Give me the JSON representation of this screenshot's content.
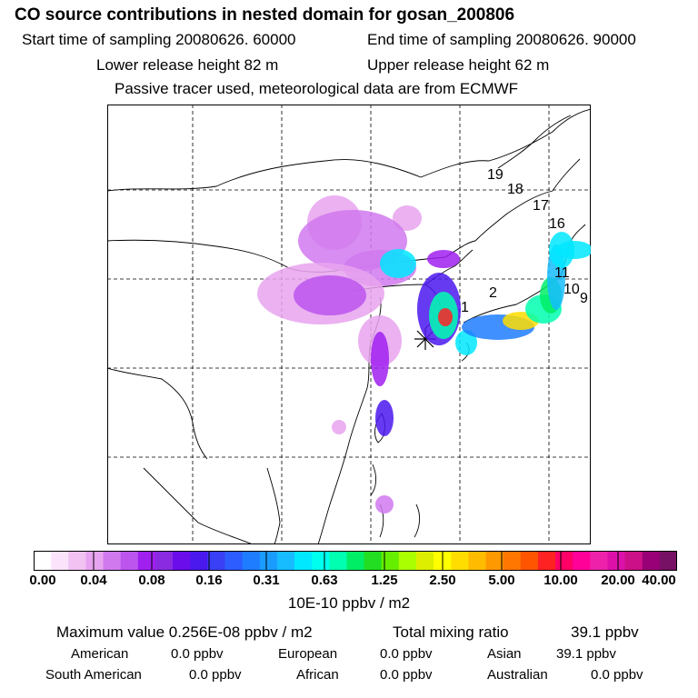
{
  "header": {
    "title": "CO  source contributions in nested domain for gosan_200806",
    "start": "Start time of sampling 20080626. 60000",
    "end": "End time of sampling 20080626. 90000",
    "lower": "Lower release height   82 m",
    "upper": "Upper release height   62 m",
    "tracer": "Passive tracer used, meteorological data are from ECMWF"
  },
  "chart_data": {
    "type": "heatmap",
    "title": "CO  source contributions in nested domain for gosan_200806",
    "colorbar": {
      "ticks": [
        "0.00",
        "0.04",
        "0.08",
        "0.16",
        "0.31",
        "0.63",
        "1.25",
        "2.50",
        "5.00",
        "10.00",
        "20.00",
        "40.00"
      ],
      "unit": "10E-10 ppbv / m2"
    },
    "trajectory_labels": [
      "1",
      "2",
      "9",
      "10",
      "11",
      "16",
      "17",
      "18",
      "19"
    ],
    "receptor": "gosan"
  },
  "summary": {
    "max": "Maximum value  0.256E-08 ppbv / m2",
    "total_label": "Total mixing ratio",
    "total_value": "39.1 ppbv",
    "regions": [
      {
        "name": "American",
        "value": "0.0 ppbv"
      },
      {
        "name": "European",
        "value": "0.0 ppbv"
      },
      {
        "name": "Asian",
        "value": "39.1 ppbv"
      },
      {
        "name": "South American",
        "value": "0.0 ppbv"
      },
      {
        "name": "African",
        "value": "0.0 ppbv"
      },
      {
        "name": "Australian",
        "value": "0.0 ppbv"
      }
    ]
  },
  "colors": {
    "scale": [
      "#ffffff",
      "#fbe4fb",
      "#f2c2f2",
      "#e7a3ef",
      "#d079ee",
      "#bb55ee",
      "#a020f0",
      "#8a2be2",
      "#6a0dea",
      "#4b18ee",
      "#3a40f5",
      "#2d5cff",
      "#1e7cff",
      "#1a9cff",
      "#16bcff",
      "#00e8ff",
      "#00ffee",
      "#00ffb0",
      "#00ee66",
      "#22dd22",
      "#66ee00",
      "#aaff00",
      "#ddee00",
      "#ffff00",
      "#ffdd00",
      "#ffbb00",
      "#ff9900",
      "#ff7700",
      "#ff5500",
      "#ff2222",
      "#ff0066",
      "#ff0099",
      "#ee22aa",
      "#dd11aa",
      "#cc1188",
      "#990077",
      "#771166"
    ]
  }
}
